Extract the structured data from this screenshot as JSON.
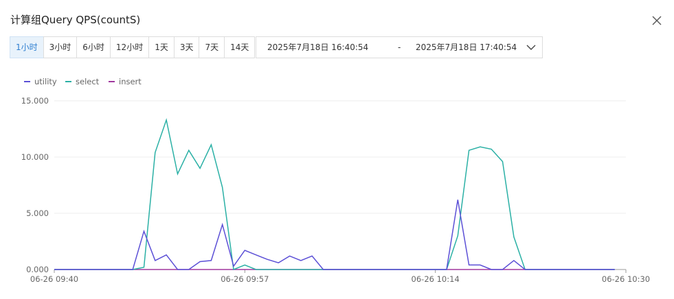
{
  "header": {
    "title": "计算组Query QPS(countS)"
  },
  "time_ranges": {
    "options": [
      "1小时",
      "3小时",
      "6小时",
      "12小时",
      "1天",
      "3天",
      "7天",
      "14天"
    ],
    "selected": 0
  },
  "date_range": {
    "start": "2025年7月18日 16:40:54",
    "separator": "-",
    "end": "2025年7月18日 17:40:54"
  },
  "chart_data": {
    "type": "line",
    "categories": [
      "06-26 09:40",
      null,
      null,
      null,
      null,
      null,
      null,
      null,
      null,
      null,
      null,
      null,
      null,
      null,
      null,
      null,
      null,
      "06-26 09:57",
      null,
      null,
      null,
      null,
      null,
      null,
      null,
      null,
      null,
      null,
      null,
      null,
      null,
      null,
      null,
      null,
      "06-26 10:14",
      null,
      null,
      null,
      null,
      null,
      null,
      null,
      null,
      null,
      null,
      null,
      null,
      null,
      null,
      null,
      null,
      "06-26 10:30"
    ],
    "series": [
      {
        "name": "utility",
        "color": "#5b4fd6",
        "values": [
          0,
          0,
          0,
          0,
          0,
          0,
          0,
          0,
          3.4,
          0.8,
          1.3,
          0,
          0,
          0.7,
          0.8,
          4.0,
          0.3,
          1.7,
          1.3,
          0.9,
          0.6,
          1.2,
          0.8,
          1.2,
          0,
          0,
          0,
          0,
          0,
          0,
          0,
          0,
          0,
          0,
          0,
          0,
          6.2,
          0.4,
          0.4,
          0,
          0,
          0.8,
          0,
          0,
          0,
          0,
          0,
          0,
          0,
          0,
          0,
          null
        ]
      },
      {
        "name": "select",
        "color": "#2ab0a5",
        "values": [
          0,
          0,
          0,
          0,
          0,
          0,
          0,
          0,
          0.2,
          10.4,
          13.3,
          8.5,
          10.6,
          9.0,
          11.1,
          7.3,
          0,
          0.4,
          0,
          0,
          0,
          0,
          0,
          0,
          0,
          0,
          0,
          0,
          0,
          0,
          0,
          0,
          0,
          0,
          0,
          0,
          3.0,
          10.6,
          10.9,
          10.7,
          9.6,
          2.9,
          0,
          0,
          0,
          0,
          0,
          0,
          0,
          0,
          0,
          null
        ]
      },
      {
        "name": "insert",
        "color": "#a0379e",
        "values": [
          0,
          0,
          0,
          0,
          0,
          0,
          0,
          0,
          0,
          0,
          0,
          0,
          0,
          0,
          0,
          0,
          0,
          0,
          0,
          0,
          0,
          0,
          0,
          0,
          0,
          0,
          0,
          0,
          0,
          0,
          0,
          0,
          0,
          0,
          0,
          0,
          0,
          0,
          0,
          0,
          0,
          0,
          0,
          0,
          0,
          0,
          0,
          0,
          0,
          0,
          0,
          null
        ]
      }
    ],
    "ylim": [
      0,
      15
    ],
    "yticks": [
      {
        "value": 0,
        "label": "0.000"
      },
      {
        "value": 5,
        "label": "5.000"
      },
      {
        "value": 10,
        "label": "10.000"
      },
      {
        "value": 15,
        "label": "15.000"
      }
    ],
    "grid": true,
    "legend": "top-left"
  }
}
